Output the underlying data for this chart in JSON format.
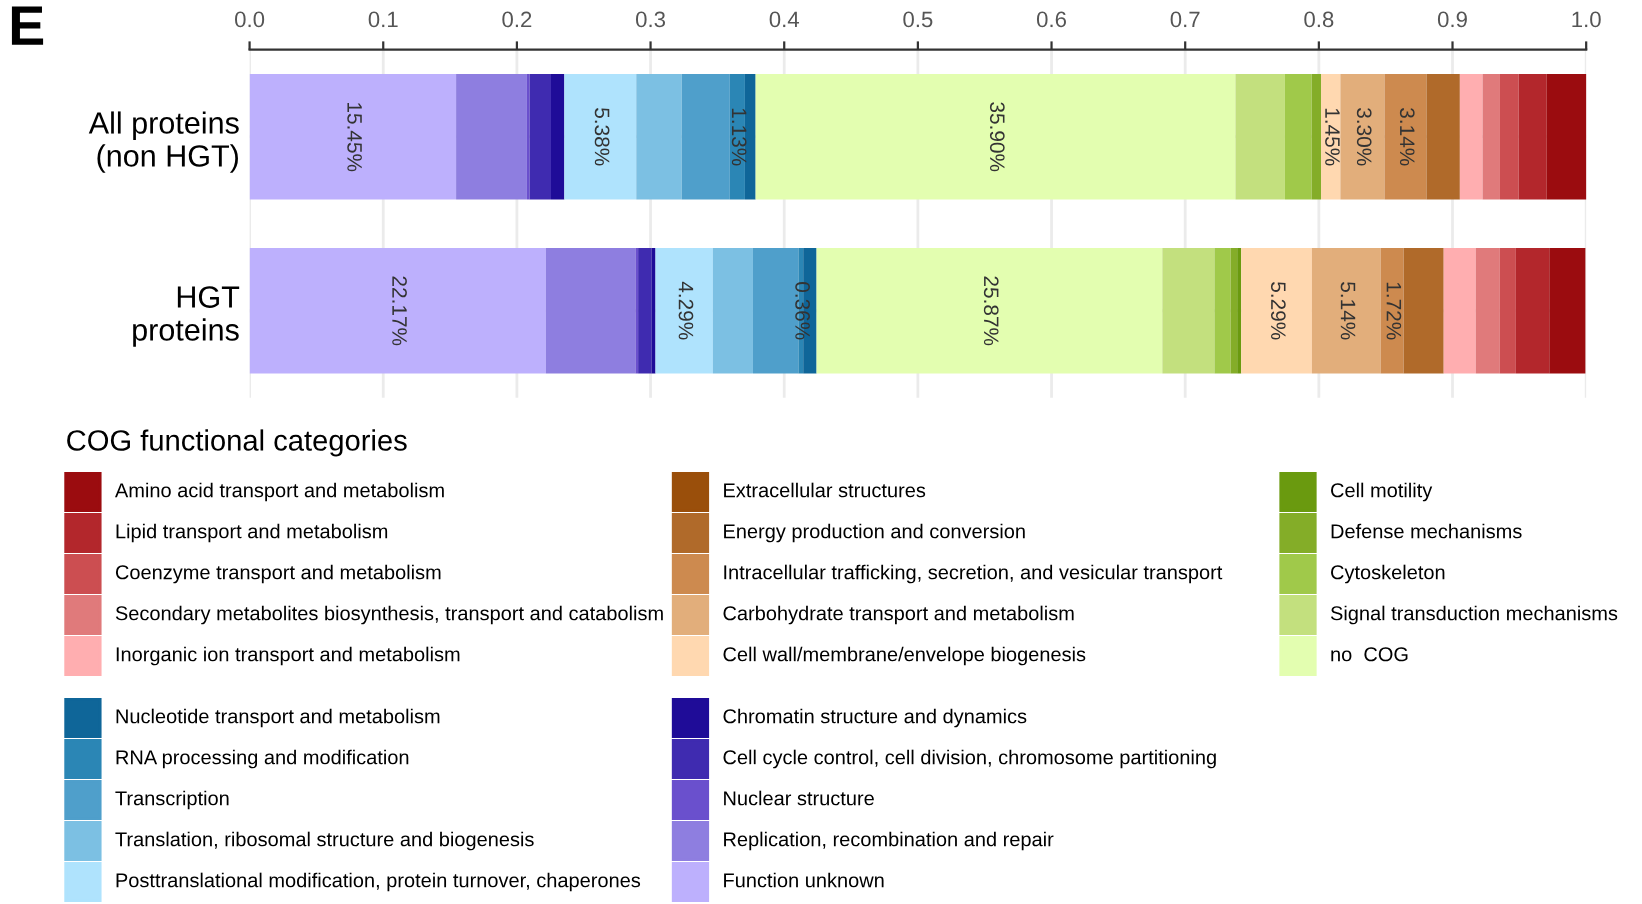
{
  "chart_data": {
    "type": "bar",
    "orientation": "horizontal",
    "stacked": true,
    "categories": [
      "All proteins\n(non HGT)",
      "HGT\nproteins"
    ],
    "legend_title": "COG functional categories",
    "annotations": [
      "E"
    ],
    "xlim": [
      0,
      1.0
    ],
    "xticks": [
      {
        "value": 0,
        "label": "0.0"
      },
      0.1,
      0.2,
      0.3,
      0.4,
      0.5,
      0.6,
      0.7,
      0.8,
      0.9,
      {
        "value": 1.0,
        "label": "1.0"
      }
    ],
    "grid": true,
    "legend": "bottom",
    "series": [
      {
        "name": "Function unknown",
        "color": "#bdb0fd",
        "values": [
          0.1545,
          0.2217
        ],
        "value_labels": [
          "15.45%",
          "22.17%"
        ]
      },
      {
        "name": "Replication, recombination and repair",
        "color": "#8e7ee0",
        "values": [
          0.053,
          0.067
        ]
      },
      {
        "name": "Nuclear structure",
        "color": "#6a50cd",
        "values": [
          0.002,
          0.002
        ]
      },
      {
        "name": "Cell cycle control, cell division, chromosome partitioning",
        "color": "#3f2bb0",
        "values": [
          0.016,
          0.01
        ]
      },
      {
        "name": "Chromatin structure and dynamics",
        "color": "#1f0c98",
        "values": [
          0.01,
          0.003
        ]
      },
      {
        "name": "Posttranslational modification, protein turnover, chaperones",
        "color": "#afe3fd",
        "values": [
          0.0538,
          0.0429
        ],
        "value_labels": [
          "5.38%",
          "4.29%"
        ]
      },
      {
        "name": "Translation, ribosomal structure and biogenesis",
        "color": "#7cc0e3",
        "values": [
          0.034,
          0.03
        ]
      },
      {
        "name": "Transcription",
        "color": "#4f9fcb",
        "values": [
          0.036,
          0.034
        ]
      },
      {
        "name": "RNA processing and modification",
        "color": "#2b86b5",
        "values": [
          0.0113,
          0.0036
        ],
        "value_labels": [
          "1.13%",
          "0.36%"
        ]
      },
      {
        "name": "Nucleotide transport and metabolism",
        "color": "#0f6699",
        "values": [
          0.008,
          0.01
        ]
      },
      {
        "name": "no  COG",
        "color": "#e3feb0",
        "values": [
          0.359,
          0.2587
        ],
        "value_labels": [
          "35.90%",
          "25.87%"
        ]
      },
      {
        "name": "Signal transduction mechanisms",
        "color": "#c3e07e",
        "values": [
          0.037,
          0.039
        ]
      },
      {
        "name": "Cytoskeleton",
        "color": "#a0c94a",
        "values": [
          0.02,
          0.012
        ]
      },
      {
        "name": "Defense mechanisms",
        "color": "#84ad28",
        "values": [
          0.007,
          0.005
        ]
      },
      {
        "name": "Cell motility",
        "color": "#6a9a0f",
        "values": [
          0,
          0.003
        ]
      },
      {
        "name": "Cell wall/membrane/envelope biogenesis",
        "color": "#ffd8b0",
        "values": [
          0.0145,
          0.0529
        ],
        "value_labels": [
          "1.45%",
          "5.29%"
        ]
      },
      {
        "name": "Carbohydrate transport and metabolism",
        "color": "#e2ae7b",
        "values": [
          0.033,
          0.0514
        ],
        "value_labels": [
          "3.30%",
          "5.14%"
        ]
      },
      {
        "name": "Intracellular trafficking, secretion, and vesicular transport",
        "color": "#cd8a4f",
        "values": [
          0.0314,
          0.0172
        ],
        "value_labels": [
          "3.14%",
          "1.72%"
        ]
      },
      {
        "name": "Energy production and conversion",
        "color": "#b06a2a",
        "values": [
          0.025,
          0.03
        ]
      },
      {
        "name": "Extracellular structures",
        "color": "#9a4f0b",
        "values": [
          0,
          0
        ]
      },
      {
        "name": "Inorganic ion transport and metabolism",
        "color": "#ffaeb0",
        "values": [
          0.017,
          0.024
        ]
      },
      {
        "name": "Secondary metabolites biosynthesis, transport and catabolism",
        "color": "#e07a7b",
        "values": [
          0.013,
          0.018
        ]
      },
      {
        "name": "Coenzyme transport and metabolism",
        "color": "#cc4e51",
        "values": [
          0.014,
          0.012
        ]
      },
      {
        "name": "Lipid transport and metabolism",
        "color": "#b3272c",
        "values": [
          0.021,
          0.025
        ]
      },
      {
        "name": "Amino acid transport and metabolism",
        "color": "#9b0c0f",
        "values": [
          0.03,
          0.027
        ]
      }
    ]
  }
}
